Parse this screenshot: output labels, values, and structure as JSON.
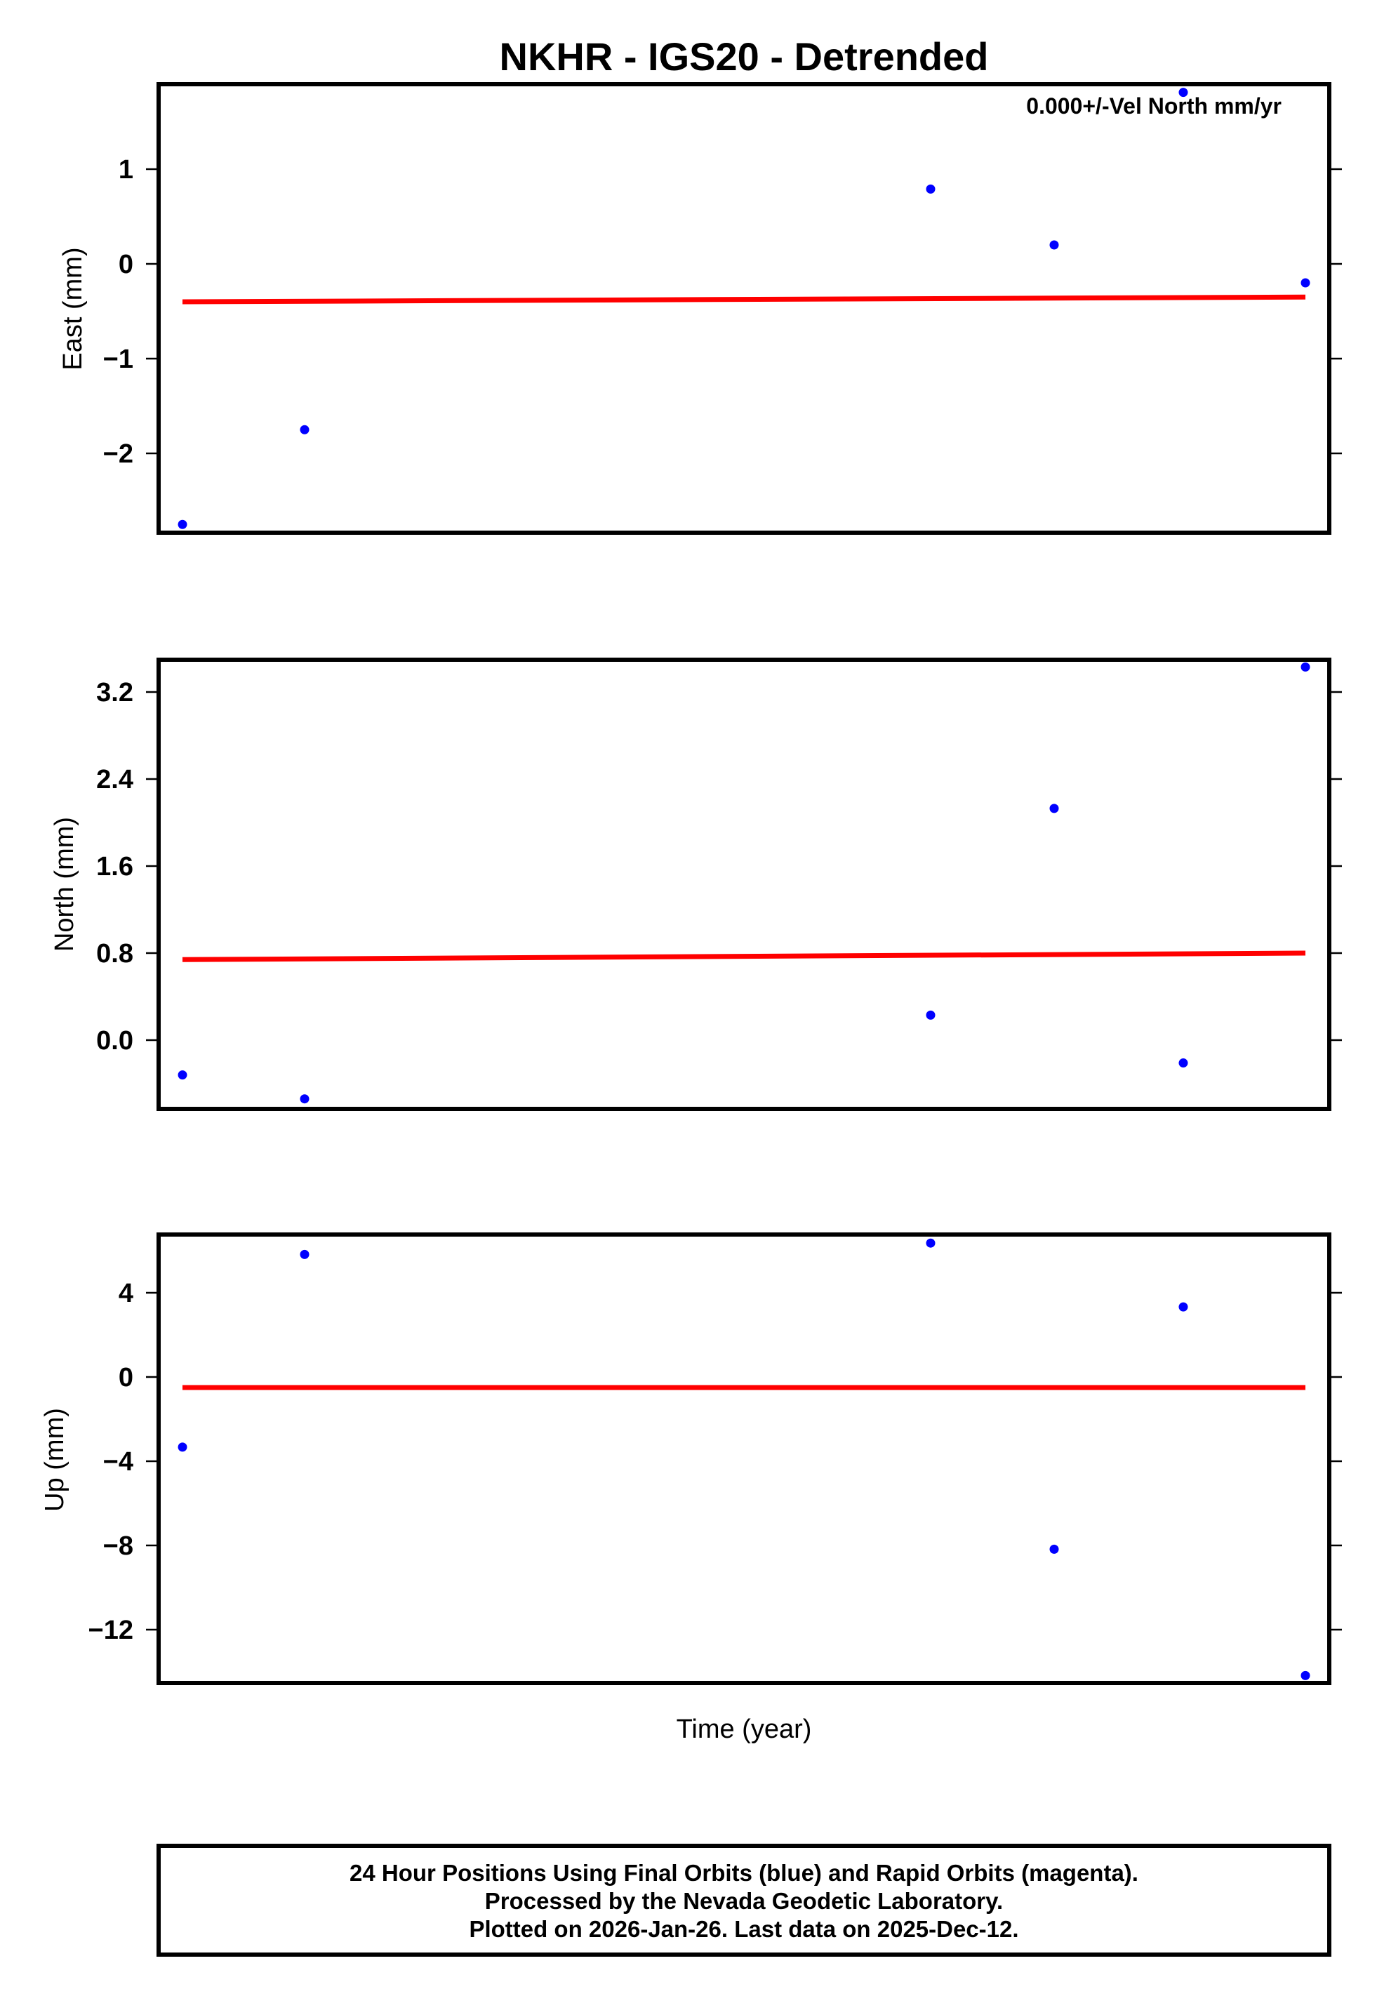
{
  "chart_data": [
    {
      "type": "scatter",
      "title": "NKHR - IGS20 - Detrended",
      "xlabel": "",
      "ylabel": "East (mm)",
      "ylim": [
        -2.85,
        1.9
      ],
      "yticks": [
        1,
        0,
        -1,
        -2
      ],
      "ytick_labels": [
        "1",
        "0",
        "−1",
        "−2"
      ],
      "annotation": "0.000+/-Vel North mm/yr",
      "series": [
        {
          "name": "Final Orbits (blue)",
          "color": "#0000ff",
          "x": [
            1,
            2,
            3,
            4,
            5,
            6
          ],
          "values": [
            -2.75,
            -1.75,
            0.79,
            0.2,
            1.81,
            -0.2
          ]
        },
        {
          "name": "Trend",
          "color": "#ff0000",
          "type": "line",
          "values_start_end": [
            -0.4,
            -0.35
          ]
        }
      ]
    },
    {
      "type": "scatter",
      "xlabel": "",
      "ylabel": "North (mm)",
      "ylim": [
        -0.65,
        3.5
      ],
      "yticks": [
        3.2,
        2.4,
        1.6,
        0.8,
        0.0
      ],
      "ytick_labels": [
        "3.2",
        "2.4",
        "1.6",
        "0.8",
        "0.0"
      ],
      "series": [
        {
          "name": "Final Orbits (blue)",
          "color": "#0000ff",
          "x": [
            1,
            2,
            3,
            4,
            5,
            6
          ],
          "values": [
            -0.32,
            -0.54,
            0.23,
            2.13,
            -0.21,
            3.43
          ]
        },
        {
          "name": "Trend",
          "color": "#ff0000",
          "type": "line",
          "values_start_end": [
            0.74,
            0.8
          ]
        }
      ]
    },
    {
      "type": "scatter",
      "xlabel": "Time (year)",
      "ylabel": "Up (mm)",
      "ylim": [
        -14.5,
        6.7
      ],
      "yticks": [
        4,
        0,
        -4,
        -8,
        -12
      ],
      "ytick_labels": [
        "4",
        "0",
        "−4",
        "−8",
        "−12"
      ],
      "series": [
        {
          "name": "Final Orbits (blue)",
          "color": "#0000ff",
          "x": [
            1,
            2,
            3,
            4,
            5,
            6
          ],
          "values": [
            -3.33,
            5.82,
            6.36,
            -8.18,
            3.33,
            -14.18
          ]
        },
        {
          "name": "Trend",
          "color": "#ff0000",
          "type": "line",
          "values_start_end": [
            -0.5,
            -0.5
          ]
        }
      ]
    }
  ],
  "figure": {
    "title": "NKHR - IGS20 - Detrended",
    "annotation": "0.000+/-Vel North mm/yr",
    "xlabel": "Time (year)",
    "colors": {
      "points": "#0000ff",
      "trend": "#ff0000",
      "frame": "#000000"
    },
    "panels": [
      {
        "ylabel": "East (mm)",
        "ticks": [
          {
            "v": 1,
            "label": "1"
          },
          {
            "v": 0,
            "label": "0"
          },
          {
            "v": -1,
            "label": "−1"
          },
          {
            "v": -2,
            "label": "−2"
          }
        ]
      },
      {
        "ylabel": "North (mm)",
        "ticks": [
          {
            "v": 3.2,
            "label": "3.2"
          },
          {
            "v": 2.4,
            "label": "2.4"
          },
          {
            "v": 1.6,
            "label": "1.6"
          },
          {
            "v": 0.8,
            "label": "0.8"
          },
          {
            "v": 0.0,
            "label": "0.0"
          }
        ]
      },
      {
        "ylabel": "Up (mm)",
        "ticks": [
          {
            "v": 4,
            "label": "4"
          },
          {
            "v": 0,
            "label": "0"
          },
          {
            "v": -4,
            "label": "−4"
          },
          {
            "v": -8,
            "label": "−8"
          },
          {
            "v": -12,
            "label": "−12"
          }
        ]
      }
    ],
    "footer": {
      "line1": "24 Hour Positions Using Final Orbits (blue) and Rapid Orbits (magenta).",
      "line2": "Processed by the Nevada Geodetic Laboratory.",
      "line3": "Plotted on 2026-Jan-26. Last data on 2025-Dec-12."
    }
  }
}
